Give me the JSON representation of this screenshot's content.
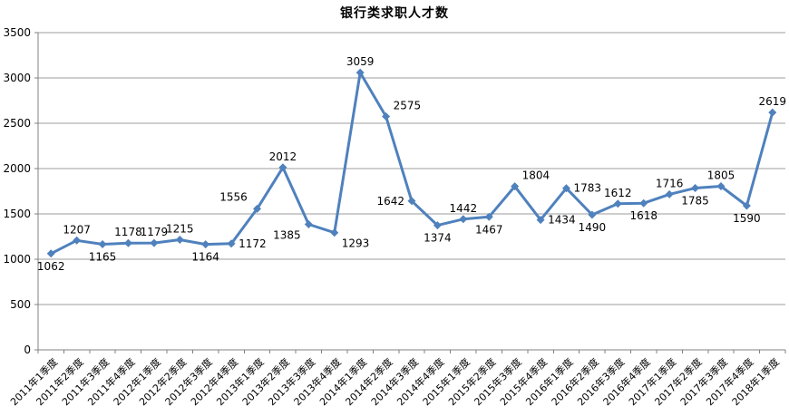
{
  "chart_data": {
    "type": "line",
    "title": "银行类求职人才数",
    "categories": [
      "2011年1季度",
      "2011年2季度",
      "2011年3季度",
      "2011年4季度",
      "2012年1季度",
      "2012年2季度",
      "2012年3季度",
      "2012年4季度",
      "2013年1季度",
      "2013年2季度",
      "2013年3季度",
      "2013年4季度",
      "2014年1季度",
      "2014年2季度",
      "2014年3季度",
      "2014年4季度",
      "2015年1季度",
      "2015年2季度",
      "2015年3季度",
      "2015年4季度",
      "2016年1季度",
      "2016年2季度",
      "2016年3季度",
      "2016年4季度",
      "2017年1季度",
      "2017年2季度",
      "2017年3季度",
      "2017年4季度",
      "2018年1季度"
    ],
    "series": [
      {
        "name": "银行类求职人才数",
        "values": [
          1062,
          1207,
          1165,
          1178,
          1179,
          1215,
          1164,
          1172,
          1556,
          2012,
          1385,
          1293,
          3059,
          2575,
          1642,
          1374,
          1442,
          1467,
          1804,
          1434,
          1783,
          1490,
          1612,
          1618,
          1716,
          1785,
          1805,
          1590,
          2619
        ]
      }
    ],
    "data_labels_visible": true,
    "label_positions": [
      "below",
      "above",
      "below",
      "above",
      "above",
      "above",
      "below",
      "right",
      "above-left",
      "above",
      "below-left",
      "below-right",
      "above",
      "above-right",
      "left",
      "below",
      "above",
      "below",
      "above-right",
      "right",
      "right",
      "below",
      "above",
      "below",
      "above",
      "below",
      "above",
      "below",
      "above"
    ],
    "y_ticks": [
      0,
      500,
      1000,
      1500,
      2000,
      2500,
      3000,
      3500
    ],
    "ylim": [
      0,
      3500
    ],
    "xlabel": "",
    "ylabel": "",
    "grid": "horizontal",
    "legend": "none",
    "marker": "diamond",
    "x_label_rotation": -45,
    "colors": {
      "line": "#4F81BD",
      "marker": "#4F81BD",
      "gridline": "#9c9c9c",
      "axis": "#808080",
      "text": "#000000",
      "background": "#FFFFFF"
    }
  }
}
